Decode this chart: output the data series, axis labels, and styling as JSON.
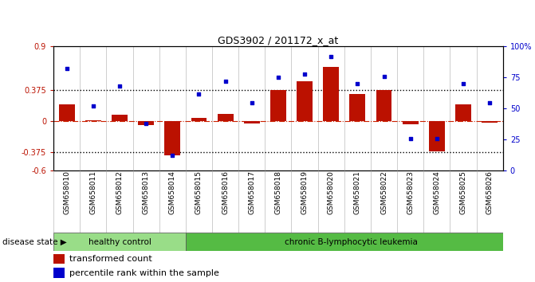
{
  "title": "GDS3902 / 201172_x_at",
  "samples": [
    "GSM658010",
    "GSM658011",
    "GSM658012",
    "GSM658013",
    "GSM658014",
    "GSM658015",
    "GSM658016",
    "GSM658017",
    "GSM658018",
    "GSM658019",
    "GSM658020",
    "GSM658021",
    "GSM658022",
    "GSM658023",
    "GSM658024",
    "GSM658025",
    "GSM658026"
  ],
  "bar_values": [
    0.2,
    0.01,
    0.08,
    -0.05,
    -0.42,
    0.04,
    0.09,
    -0.03,
    0.37,
    0.48,
    0.65,
    0.33,
    0.37,
    -0.04,
    -0.37,
    0.2,
    -0.02
  ],
  "dot_values": [
    82,
    52,
    68,
    38,
    12,
    62,
    72,
    55,
    75,
    78,
    92,
    70,
    76,
    26,
    26,
    70,
    55
  ],
  "healthy_count": 5,
  "ylim_left": [
    -0.6,
    0.9
  ],
  "ylim_right": [
    0,
    100
  ],
  "yticks_left": [
    -0.6,
    -0.375,
    0.0,
    0.375,
    0.9
  ],
  "ytick_labels_left": [
    "-0.6",
    "-0.375",
    "0",
    "0.375",
    "0.9"
  ],
  "yticks_right": [
    0,
    25,
    50,
    75,
    100
  ],
  "ytick_labels_right": [
    "0",
    "25",
    "50",
    "75",
    "100%"
  ],
  "hlines": [
    0.375,
    -0.375
  ],
  "bar_color": "#bb1100",
  "dot_color": "#0000cc",
  "zero_line_color": "#cc2200",
  "hline_color": "#000000",
  "healthy_color": "#99dd88",
  "leukemia_color": "#55bb44",
  "background_color": "#ffffff",
  "legend_bar_label": "transformed count",
  "legend_dot_label": "percentile rank within the sample",
  "disease_label": "disease state"
}
